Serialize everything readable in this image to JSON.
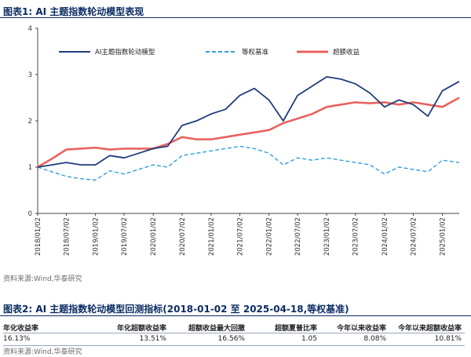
{
  "figure1": {
    "title": "图表1:  AI 主题指数轮动模型表现",
    "source": "资料来源:Wind,华泰研究"
  },
  "figure2": {
    "title": "图表2:  AI 主题指数轮动模型回测指标(2018-01-02 至 2025-04-18,等权基准)",
    "source": "资料来源:Wind,华泰研究",
    "headers": [
      "年化收益率",
      "年化超额收益率",
      "超额收益最大回撤",
      "超额夏普比率",
      "今年以来收益率",
      "今年以来超额收益率"
    ],
    "values": [
      "16.13%",
      "13.51%",
      "16.56%",
      "1.05",
      "8.08%",
      "10.81%"
    ]
  },
  "chart_data": {
    "type": "line",
    "title": "",
    "xlabel": "",
    "ylabel": "",
    "ylim": [
      0,
      4
    ],
    "yticks": [
      "0",
      "1",
      "2",
      "3",
      "4"
    ],
    "xticks": [
      "2018/01/02",
      "2018/07/02",
      "2019/01/02",
      "2019/07/02",
      "2020/01/02",
      "2020/07/02",
      "2021/01/02",
      "2021/07/02",
      "2022/01/02",
      "2022/07/02",
      "2023/01/02",
      "2023/07/02",
      "2024/01/02",
      "2024/07/02",
      "2025/01/02"
    ],
    "legend_position": "top",
    "grid": false,
    "x": [
      "2018/01/02",
      "2018/04/02",
      "2018/07/02",
      "2018/10/02",
      "2019/01/02",
      "2019/04/02",
      "2019/07/02",
      "2019/10/02",
      "2020/01/02",
      "2020/04/02",
      "2020/07/02",
      "2020/10/02",
      "2021/01/02",
      "2021/04/02",
      "2021/07/02",
      "2021/10/02",
      "2022/01/02",
      "2022/04/02",
      "2022/07/02",
      "2022/10/02",
      "2023/01/02",
      "2023/04/02",
      "2023/07/02",
      "2023/10/02",
      "2024/01/02",
      "2024/04/02",
      "2024/07/02",
      "2024/10/02",
      "2025/01/02",
      "2025/04/18"
    ],
    "series": [
      {
        "name": "AI主题指数轮动模型",
        "color": "#1f3c7a",
        "style": "solid",
        "values": [
          1.0,
          1.05,
          1.1,
          1.05,
          1.05,
          1.25,
          1.2,
          1.3,
          1.4,
          1.45,
          1.9,
          2.0,
          2.15,
          2.25,
          2.55,
          2.7,
          2.45,
          2.0,
          2.55,
          2.75,
          2.95,
          2.9,
          2.8,
          2.6,
          2.3,
          2.45,
          2.35,
          2.1,
          2.65,
          2.85
        ]
      },
      {
        "name": "等权基准",
        "color": "#2e9fd8",
        "style": "dashed",
        "values": [
          1.0,
          0.9,
          0.8,
          0.75,
          0.72,
          0.92,
          0.85,
          0.95,
          1.05,
          1.0,
          1.25,
          1.3,
          1.35,
          1.4,
          1.45,
          1.4,
          1.3,
          1.05,
          1.2,
          1.15,
          1.2,
          1.15,
          1.1,
          1.05,
          0.85,
          1.0,
          0.95,
          0.9,
          1.15,
          1.1
        ]
      },
      {
        "name": "超额收益",
        "color": "#e8635f",
        "style": "solid",
        "values": [
          1.0,
          1.18,
          1.38,
          1.4,
          1.42,
          1.38,
          1.4,
          1.4,
          1.4,
          1.5,
          1.65,
          1.6,
          1.6,
          1.65,
          1.7,
          1.75,
          1.8,
          1.95,
          2.05,
          2.15,
          2.3,
          2.35,
          2.4,
          2.38,
          2.4,
          2.35,
          2.4,
          2.35,
          2.3,
          2.5
        ]
      }
    ]
  }
}
